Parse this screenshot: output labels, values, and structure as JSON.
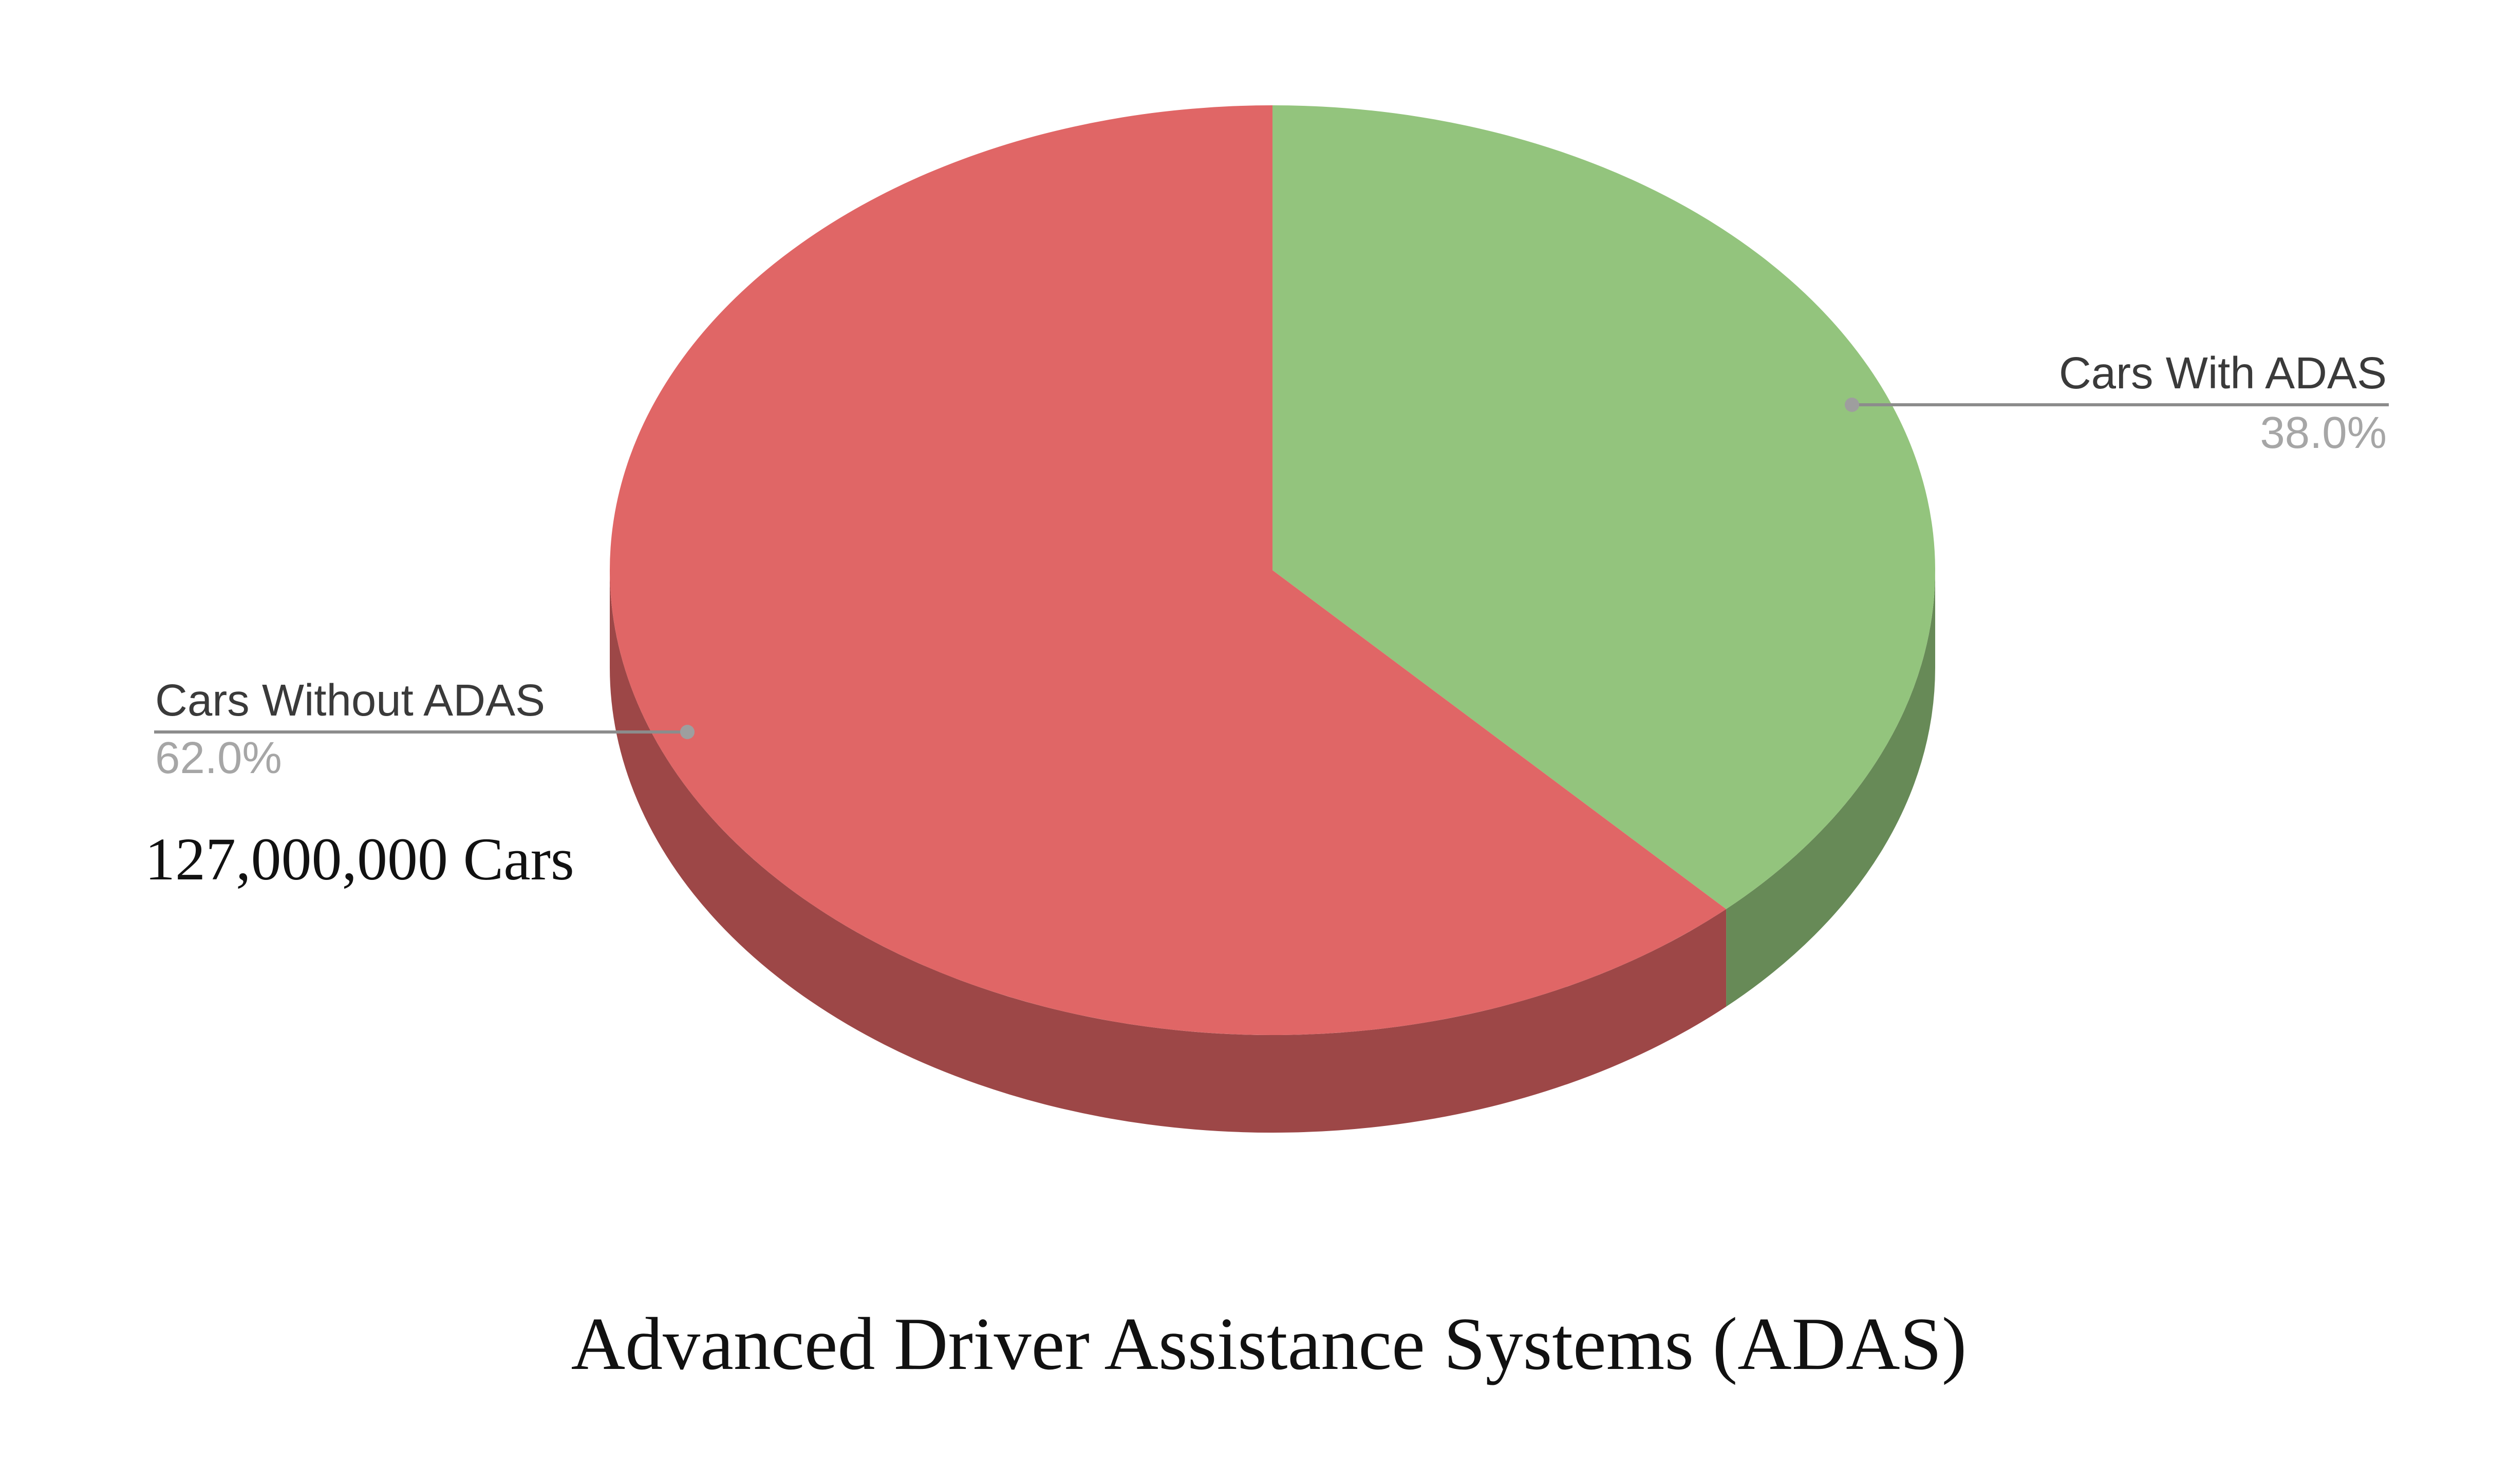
{
  "chart_data": {
    "type": "pie",
    "style": "3d",
    "title": "Advanced Driver Assistance Systems (ADAS)",
    "slices": [
      {
        "label": "Cars With ADAS",
        "value": 38.0,
        "value_label": "38.0%",
        "color": "#93c47d",
        "side_color": "#678a57"
      },
      {
        "label": "Cars Without ADAS",
        "value": 62.0,
        "value_label": "62.0%",
        "color": "#e06666",
        "side_color": "#9d4747"
      }
    ],
    "annotations": [
      {
        "text": "127,000,000 Cars",
        "slice": "Cars Without ADAS"
      }
    ],
    "legend": "none",
    "label_style": "leader-lines"
  }
}
